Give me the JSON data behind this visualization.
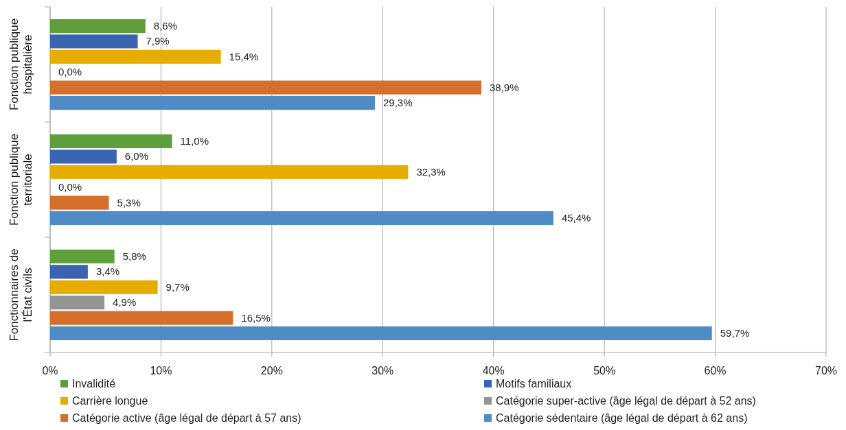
{
  "chart_data": {
    "type": "bar",
    "orientation": "horizontal",
    "categories": [
      "Fonction publique hospitalière",
      "Fonction publique territoriale",
      "Fonctionnaires de l'État civils"
    ],
    "series": [
      {
        "name": "Invalidité",
        "color": "#5e9e3c",
        "values": [
          8.6,
          11.0,
          5.8
        ],
        "value_labels": [
          "8,6%",
          "11,0%",
          "5,8%"
        ]
      },
      {
        "name": "Motifs familiaux",
        "color": "#3a63b0",
        "values": [
          7.9,
          6.0,
          3.4
        ],
        "value_labels": [
          "7,9%",
          "6,0%",
          "3,4%"
        ]
      },
      {
        "name": "Carrière longue",
        "color": "#e6ad00",
        "values": [
          15.4,
          32.3,
          9.7
        ],
        "value_labels": [
          "15,4%",
          "32,3%",
          "9,7%"
        ]
      },
      {
        "name": "Catégorie super-active (âge légal de départ à 52 ans)",
        "color": "#949494",
        "values": [
          0.0,
          0.0,
          4.9
        ],
        "value_labels": [
          "0,0%",
          "0,0%",
          "4,9%"
        ]
      },
      {
        "name": "Catégorie active (âge légal de départ à 57 ans)",
        "color": "#d4702b",
        "values": [
          38.9,
          5.3,
          16.5
        ],
        "value_labels": [
          "38,9%",
          "5,3%",
          "16,5%"
        ]
      },
      {
        "name": "Catégorie sédentaire (âge légal de départ à 62 ans)",
        "color": "#4f8bc4",
        "values": [
          29.3,
          45.4,
          59.7
        ],
        "value_labels": [
          "29,3%",
          "45,4%",
          "59,7%"
        ]
      }
    ],
    "xlim": [
      0,
      70
    ],
    "xticks": [
      {
        "value": 0,
        "label": "0%"
      },
      {
        "value": 10,
        "label": "10%"
      },
      {
        "value": 20,
        "label": "20%"
      },
      {
        "value": 30,
        "label": "30%"
      },
      {
        "value": 40,
        "label": "40%"
      },
      {
        "value": 50,
        "label": "50%"
      },
      {
        "value": 60,
        "label": "60%"
      },
      {
        "value": 70,
        "label": "70%"
      }
    ],
    "grid": "x",
    "legend": "bottom"
  }
}
